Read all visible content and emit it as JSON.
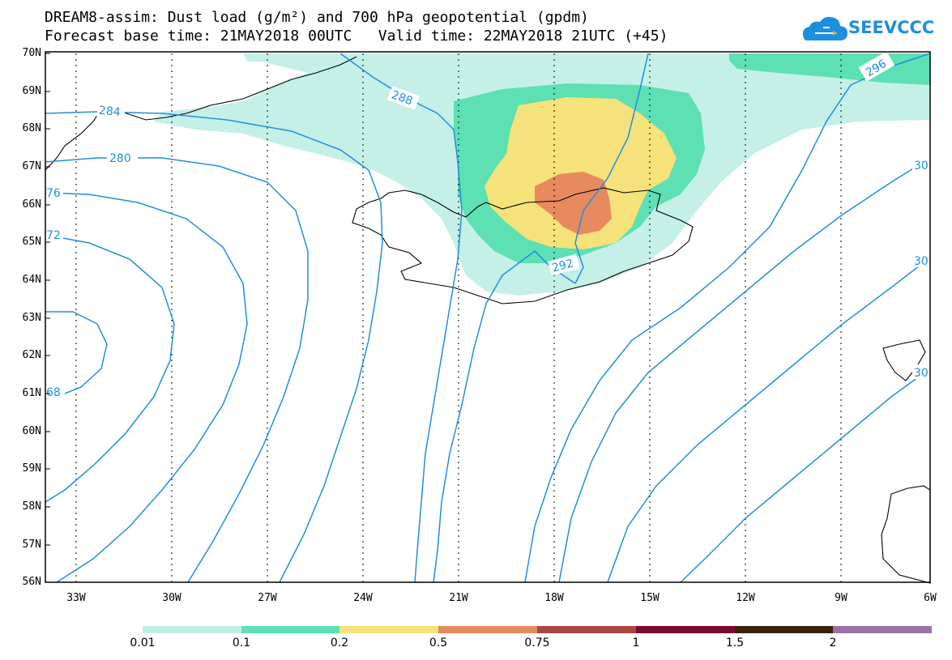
{
  "title_line1": "DREAM8-assim: Dust load (g/m²) and 700 hPa geopotential (gpdm)",
  "title_line2": "Forecast base time: 21MAY2018 00UTC   Valid time: 22MAY2018 21UTC (+45)",
  "logo_text": "SEEVCCC",
  "lat_ticks": [
    "70N",
    "69N",
    "68N",
    "67N",
    "66N",
    "65N",
    "64N",
    "63N",
    "62N",
    "61N",
    "60N",
    "59N",
    "58N",
    "57N",
    "56N"
  ],
  "lon_ticks": [
    "33W",
    "30W",
    "27W",
    "24W",
    "21W",
    "18W",
    "15W",
    "12W",
    "9W",
    "6W"
  ],
  "contour_labels": [
    "284",
    "280",
    "76",
    "72",
    "68",
    "288",
    "292",
    "296",
    "30",
    "30",
    "30"
  ],
  "colorbar": {
    "labels": [
      "0.01",
      "0.1",
      "0.2",
      "0.5",
      "0.75",
      "1",
      "1.5",
      "2"
    ],
    "colors": [
      "#bff0e6",
      "#5de0b4",
      "#f5e27a",
      "#e88a5f",
      "#a74a42",
      "#7a0a30",
      "#3a2410",
      "#9a72a8"
    ]
  },
  "colors": {
    "contour": "#1f8fe0",
    "dust_0_01": "#c4f0e8",
    "dust_0_1": "#5de0b4",
    "dust_0_2": "#f5e27a",
    "dust_0_5": "#e88a5f",
    "coast": "#000000"
  }
}
